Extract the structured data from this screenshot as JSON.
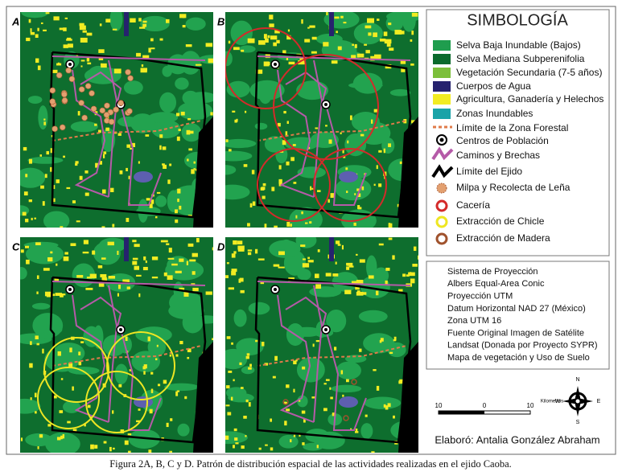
{
  "panels": [
    "A",
    "B",
    "C",
    "D"
  ],
  "legend": {
    "title": "SIMBOLOGÍA",
    "items": [
      "Selva Baja Inundable (Bajos)",
      "Selva Mediana Subperenifolia",
      "Vegetación Secundaria (7-5 años)",
      "Cuerpos de Agua",
      "Agricultura, Ganadería y Helechos",
      "Zonas Inundables",
      "Límite de la Zona Forestal",
      "Centros de Población",
      "Caminos y Brechas",
      "Límite del Ejido",
      "Milpa y Recolecta de Leña",
      "Cacería",
      "Extracción de Chicle",
      "Extracción de Madera"
    ]
  },
  "projection": [
    "Sistema de Proyección",
    "Albers Equal-Area Conic",
    "Proyección UTM",
    "Datum Horizontal NAD 27 (México)",
    "Zona UTM 16",
    "Fuente Original Imagen de Satélite",
    "Landsat (Donada por Proyecto SYPR)",
    "Mapa de vegetación y Uso de Suelo"
  ],
  "scale": {
    "labels": [
      "10",
      "0",
      "10"
    ],
    "unit": "Kilometros"
  },
  "compass": {
    "n": "N",
    "e": "E",
    "s": "S",
    "w": "W"
  },
  "author": "Elaboró: Antalia González Abraham",
  "caption": "Figura 2A, B, C y D. Patrón de distribución espacial de las actividades realizadas en el ejido Caoba."
}
